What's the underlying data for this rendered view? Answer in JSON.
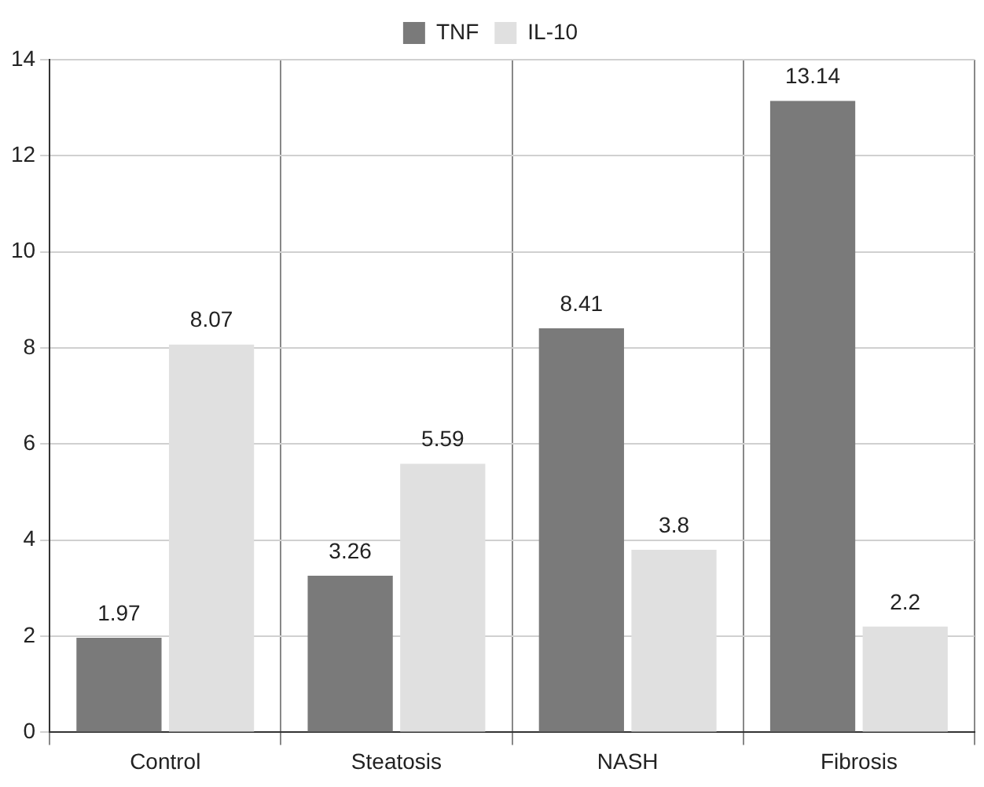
{
  "chart_data": {
    "type": "bar",
    "categories": [
      "Control",
      "Steatosis",
      "NASH",
      "Fibrosis"
    ],
    "series": [
      {
        "name": "TNF",
        "color": "#7a7a7a",
        "values": [
          1.97,
          3.26,
          8.41,
          13.14
        ]
      },
      {
        "name": "IL-10",
        "color": "#e0e0e0",
        "values": [
          8.07,
          5.59,
          3.8,
          2.2
        ]
      }
    ],
    "ylim": [
      0,
      14
    ],
    "yticks": [
      0,
      2,
      4,
      6,
      8,
      10,
      12,
      14
    ],
    "grid": true,
    "legend": "top",
    "data_labels": true
  }
}
